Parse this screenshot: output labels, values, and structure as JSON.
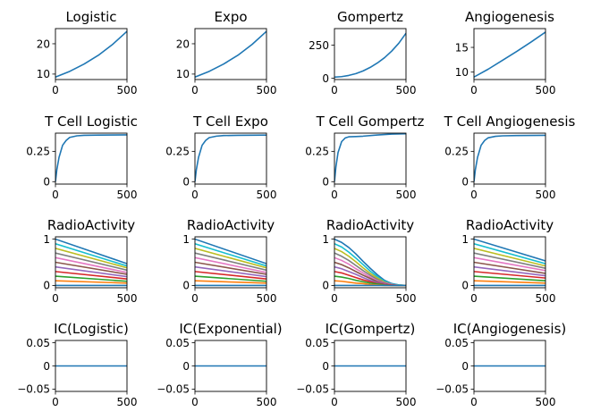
{
  "chart_data": [
    {
      "type": "line",
      "title": "Logistic",
      "xlim": [
        0,
        500
      ],
      "ylim": [
        8.2,
        25
      ],
      "xticks": [
        0,
        500
      ],
      "yticks": [
        10,
        20
      ],
      "series": [
        {
          "x": [
            0,
            100,
            200,
            300,
            400,
            500
          ],
          "y": [
            9.0,
            10.9,
            13.3,
            16.2,
            19.8,
            24.1
          ]
        }
      ]
    },
    {
      "type": "line",
      "title": "Expo",
      "xlim": [
        0,
        500
      ],
      "ylim": [
        8.2,
        25
      ],
      "xticks": [
        0,
        500
      ],
      "yticks": [
        10,
        20
      ],
      "series": [
        {
          "x": [
            0,
            100,
            200,
            300,
            400,
            500
          ],
          "y": [
            9.0,
            10.9,
            13.3,
            16.2,
            19.8,
            24.1
          ]
        }
      ]
    },
    {
      "type": "line",
      "title": "Gompertz",
      "xlim": [
        0,
        500
      ],
      "ylim": [
        -10,
        375
      ],
      "xticks": [
        0,
        500
      ],
      "yticks": [
        0,
        250
      ],
      "series": [
        {
          "x": [
            0,
            50,
            100,
            150,
            200,
            250,
            300,
            350,
            400,
            450,
            500
          ],
          "y": [
            8,
            12,
            21,
            35,
            55,
            82,
            115,
            155,
            205,
            265,
            340
          ]
        }
      ]
    },
    {
      "type": "line",
      "title": "Angiogenesis",
      "xlim": [
        0,
        500
      ],
      "ylim": [
        8.5,
        18.8
      ],
      "xticks": [
        0,
        500
      ],
      "yticks": [
        10,
        15
      ],
      "series": [
        {
          "x": [
            0,
            100,
            200,
            300,
            400,
            500
          ],
          "y": [
            9.0,
            10.6,
            12.4,
            14.2,
            16.1,
            18.1
          ]
        }
      ]
    },
    {
      "type": "line",
      "title": "T Cell Logistic",
      "xlim": [
        0,
        500
      ],
      "ylim": [
        -0.02,
        0.4
      ],
      "xticks": [
        0,
        500
      ],
      "yticks": [
        0.0,
        0.25
      ],
      "series": [
        {
          "x": [
            0,
            10,
            25,
            50,
            75,
            100,
            150,
            200,
            300,
            400,
            500
          ],
          "y": [
            0.0,
            0.1,
            0.2,
            0.3,
            0.34,
            0.365,
            0.378,
            0.382,
            0.384,
            0.385,
            0.386
          ]
        }
      ]
    },
    {
      "type": "line",
      "title": "T Cell Expo",
      "xlim": [
        0,
        500
      ],
      "ylim": [
        -0.02,
        0.4
      ],
      "xticks": [
        0,
        500
      ],
      "yticks": [
        0.0,
        0.25
      ],
      "series": [
        {
          "x": [
            0,
            10,
            25,
            50,
            75,
            100,
            150,
            200,
            300,
            400,
            500
          ],
          "y": [
            0.0,
            0.1,
            0.2,
            0.3,
            0.34,
            0.363,
            0.375,
            0.38,
            0.382,
            0.383,
            0.384
          ]
        }
      ]
    },
    {
      "type": "line",
      "title": "T Cell Gompertz",
      "xlim": [
        0,
        500
      ],
      "ylim": [
        -0.02,
        0.4
      ],
      "xticks": [
        0,
        500
      ],
      "yticks": [
        0.0,
        0.25
      ],
      "series": [
        {
          "x": [
            0,
            10,
            25,
            50,
            75,
            100,
            150,
            200,
            300,
            400,
            500
          ],
          "y": [
            0.0,
            0.12,
            0.24,
            0.33,
            0.36,
            0.37,
            0.372,
            0.375,
            0.385,
            0.392,
            0.395
          ]
        }
      ]
    },
    {
      "type": "line",
      "title": "T Cell Angiogenesis",
      "xlim": [
        0,
        500
      ],
      "ylim": [
        -0.02,
        0.4
      ],
      "xticks": [
        0,
        500
      ],
      "yticks": [
        0.0,
        0.25
      ],
      "series": [
        {
          "x": [
            0,
            10,
            25,
            50,
            75,
            100,
            150,
            200,
            300,
            400,
            500
          ],
          "y": [
            0.0,
            0.1,
            0.2,
            0.3,
            0.34,
            0.362,
            0.374,
            0.378,
            0.38,
            0.381,
            0.382
          ]
        }
      ]
    },
    {
      "type": "line",
      "title": "RadioActivity",
      "xlim": [
        0,
        500
      ],
      "ylim": [
        -0.05,
        1.05
      ],
      "xticks": [
        0,
        500
      ],
      "yticks": [
        0,
        1
      ],
      "series": [
        {
          "x": [
            0,
            500
          ],
          "y": [
            1.0,
            0.47
          ],
          "color": "#1f77b4"
        },
        {
          "x": [
            0,
            500
          ],
          "y": [
            0.9,
            0.42
          ],
          "color": "#17becf"
        },
        {
          "x": [
            0,
            500
          ],
          "y": [
            0.8,
            0.38
          ],
          "color": "#bcbd22"
        },
        {
          "x": [
            0,
            500
          ],
          "y": [
            0.7,
            0.33
          ],
          "color": "#7f7f7f"
        },
        {
          "x": [
            0,
            500
          ],
          "y": [
            0.6,
            0.28
          ],
          "color": "#e377c2"
        },
        {
          "x": [
            0,
            500
          ],
          "y": [
            0.5,
            0.24
          ],
          "color": "#8c564b"
        },
        {
          "x": [
            0,
            500
          ],
          "y": [
            0.4,
            0.19
          ],
          "color": "#9467bd"
        },
        {
          "x": [
            0,
            500
          ],
          "y": [
            0.3,
            0.14
          ],
          "color": "#d62728"
        },
        {
          "x": [
            0,
            500
          ],
          "y": [
            0.2,
            0.09
          ],
          "color": "#2ca02c"
        },
        {
          "x": [
            0,
            500
          ],
          "y": [
            0.1,
            0.05
          ],
          "color": "#ff7f0e"
        },
        {
          "x": [
            0,
            500
          ],
          "y": [
            0.0,
            0.0
          ],
          "color": "#1f77b4"
        }
      ]
    },
    {
      "type": "line",
      "title": "RadioActivity",
      "xlim": [
        0,
        500
      ],
      "ylim": [
        -0.05,
        1.05
      ],
      "xticks": [
        0,
        500
      ],
      "yticks": [
        0,
        1
      ],
      "series": [
        {
          "x": [
            0,
            500
          ],
          "y": [
            1.0,
            0.47
          ],
          "color": "#1f77b4"
        },
        {
          "x": [
            0,
            500
          ],
          "y": [
            0.9,
            0.42
          ],
          "color": "#17becf"
        },
        {
          "x": [
            0,
            500
          ],
          "y": [
            0.8,
            0.38
          ],
          "color": "#bcbd22"
        },
        {
          "x": [
            0,
            500
          ],
          "y": [
            0.7,
            0.33
          ],
          "color": "#7f7f7f"
        },
        {
          "x": [
            0,
            500
          ],
          "y": [
            0.6,
            0.28
          ],
          "color": "#e377c2"
        },
        {
          "x": [
            0,
            500
          ],
          "y": [
            0.5,
            0.24
          ],
          "color": "#8c564b"
        },
        {
          "x": [
            0,
            500
          ],
          "y": [
            0.4,
            0.19
          ],
          "color": "#9467bd"
        },
        {
          "x": [
            0,
            500
          ],
          "y": [
            0.3,
            0.14
          ],
          "color": "#d62728"
        },
        {
          "x": [
            0,
            500
          ],
          "y": [
            0.2,
            0.09
          ],
          "color": "#2ca02c"
        },
        {
          "x": [
            0,
            500
          ],
          "y": [
            0.1,
            0.05
          ],
          "color": "#ff7f0e"
        },
        {
          "x": [
            0,
            500
          ],
          "y": [
            0.0,
            0.0
          ],
          "color": "#1f77b4"
        }
      ]
    },
    {
      "type": "line",
      "title": "RadioActivity",
      "xlim": [
        0,
        500
      ],
      "ylim": [
        -0.05,
        1.05
      ],
      "xticks": [
        0,
        500
      ],
      "yticks": [
        0,
        1
      ],
      "series": [
        {
          "x": [
            0,
            50,
            100,
            150,
            200,
            250,
            300,
            350,
            400,
            450,
            500
          ],
          "y": [
            1.0,
            0.93,
            0.82,
            0.68,
            0.52,
            0.37,
            0.23,
            0.11,
            0.04,
            0.01,
            0.0
          ],
          "color": "#1f77b4"
        },
        {
          "x": [
            0,
            50,
            100,
            150,
            200,
            250,
            300,
            350,
            400,
            450,
            500
          ],
          "y": [
            0.9,
            0.83,
            0.72,
            0.59,
            0.45,
            0.31,
            0.19,
            0.09,
            0.03,
            0.01,
            0.0
          ],
          "color": "#17becf"
        },
        {
          "x": [
            0,
            50,
            100,
            150,
            200,
            250,
            300,
            350,
            400,
            450,
            500
          ],
          "y": [
            0.8,
            0.73,
            0.63,
            0.51,
            0.38,
            0.26,
            0.16,
            0.07,
            0.02,
            0.0,
            0.0
          ],
          "color": "#bcbd22"
        },
        {
          "x": [
            0,
            50,
            100,
            150,
            200,
            250,
            300,
            350,
            400,
            450,
            500
          ],
          "y": [
            0.7,
            0.63,
            0.54,
            0.43,
            0.32,
            0.22,
            0.13,
            0.06,
            0.02,
            0.0,
            0.0
          ],
          "color": "#7f7f7f"
        },
        {
          "x": [
            0,
            50,
            100,
            150,
            200,
            250,
            300,
            350,
            400,
            450,
            500
          ],
          "y": [
            0.6,
            0.54,
            0.46,
            0.36,
            0.27,
            0.18,
            0.1,
            0.05,
            0.02,
            0.0,
            0.0
          ],
          "color": "#e377c2"
        },
        {
          "x": [
            0,
            50,
            100,
            150,
            200,
            250,
            300,
            350,
            400,
            450,
            500
          ],
          "y": [
            0.5,
            0.45,
            0.38,
            0.3,
            0.22,
            0.15,
            0.08,
            0.04,
            0.01,
            0.0,
            0.0
          ],
          "color": "#8c564b"
        },
        {
          "x": [
            0,
            50,
            100,
            150,
            200,
            250,
            300,
            350,
            400,
            450,
            500
          ],
          "y": [
            0.4,
            0.36,
            0.3,
            0.24,
            0.17,
            0.11,
            0.06,
            0.03,
            0.01,
            0.0,
            0.0
          ],
          "color": "#9467bd"
        },
        {
          "x": [
            0,
            50,
            100,
            150,
            200,
            250,
            300,
            350,
            400,
            450,
            500
          ],
          "y": [
            0.3,
            0.27,
            0.22,
            0.17,
            0.12,
            0.08,
            0.04,
            0.02,
            0.01,
            0.0,
            0.0
          ],
          "color": "#d62728"
        },
        {
          "x": [
            0,
            50,
            100,
            150,
            200,
            250,
            300,
            350,
            400,
            450,
            500
          ],
          "y": [
            0.2,
            0.18,
            0.15,
            0.11,
            0.08,
            0.05,
            0.03,
            0.01,
            0.0,
            0.0,
            0.0
          ],
          "color": "#2ca02c"
        },
        {
          "x": [
            0,
            50,
            100,
            150,
            200,
            250,
            300,
            350,
            400,
            450,
            500
          ],
          "y": [
            0.1,
            0.09,
            0.07,
            0.05,
            0.04,
            0.02,
            0.01,
            0.0,
            0.0,
            0.0,
            0.0
          ],
          "color": "#ff7f0e"
        },
        {
          "x": [
            0,
            500
          ],
          "y": [
            0.0,
            0.0
          ],
          "color": "#1f77b4"
        }
      ]
    },
    {
      "type": "line",
      "title": "RadioActivity",
      "xlim": [
        0,
        500
      ],
      "ylim": [
        -0.05,
        1.05
      ],
      "xticks": [
        0,
        500
      ],
      "yticks": [
        0,
        1
      ],
      "series": [
        {
          "x": [
            0,
            500
          ],
          "y": [
            1.0,
            0.53
          ],
          "color": "#1f77b4"
        },
        {
          "x": [
            0,
            500
          ],
          "y": [
            0.9,
            0.47
          ],
          "color": "#17becf"
        },
        {
          "x": [
            0,
            500
          ],
          "y": [
            0.8,
            0.42
          ],
          "color": "#bcbd22"
        },
        {
          "x": [
            0,
            500
          ],
          "y": [
            0.7,
            0.37
          ],
          "color": "#7f7f7f"
        },
        {
          "x": [
            0,
            500
          ],
          "y": [
            0.6,
            0.32
          ],
          "color": "#e377c2"
        },
        {
          "x": [
            0,
            500
          ],
          "y": [
            0.5,
            0.26
          ],
          "color": "#8c564b"
        },
        {
          "x": [
            0,
            500
          ],
          "y": [
            0.4,
            0.21
          ],
          "color": "#9467bd"
        },
        {
          "x": [
            0,
            500
          ],
          "y": [
            0.3,
            0.16
          ],
          "color": "#d62728"
        },
        {
          "x": [
            0,
            500
          ],
          "y": [
            0.2,
            0.1
          ],
          "color": "#2ca02c"
        },
        {
          "x": [
            0,
            500
          ],
          "y": [
            0.1,
            0.05
          ],
          "color": "#ff7f0e"
        },
        {
          "x": [
            0,
            500
          ],
          "y": [
            0.0,
            0.0
          ],
          "color": "#1f77b4"
        }
      ]
    },
    {
      "type": "line",
      "title": "IC(Logistic)",
      "xlim": [
        0,
        500
      ],
      "ylim": [
        -0.055,
        0.055
      ],
      "xticks": [
        0,
        500
      ],
      "yticks": [
        -0.05,
        0.0,
        0.05
      ],
      "series": [
        {
          "x": [
            0,
            500
          ],
          "y": [
            0.0,
            0.0
          ]
        }
      ]
    },
    {
      "type": "line",
      "title": "IC(Exponential)",
      "xlim": [
        0,
        500
      ],
      "ylim": [
        -0.055,
        0.055
      ],
      "xticks": [
        0,
        500
      ],
      "yticks": [
        -0.05,
        0.0,
        0.05
      ],
      "series": [
        {
          "x": [
            0,
            500
          ],
          "y": [
            0.0,
            0.0
          ]
        }
      ]
    },
    {
      "type": "line",
      "title": "IC(Gompertz)",
      "xlim": [
        0,
        500
      ],
      "ylim": [
        -0.055,
        0.055
      ],
      "xticks": [
        0,
        500
      ],
      "yticks": [
        -0.05,
        0.0,
        0.05
      ],
      "series": [
        {
          "x": [
            0,
            500
          ],
          "y": [
            0.0,
            0.0
          ]
        }
      ]
    },
    {
      "type": "line",
      "title": "IC(Angiogenesis)",
      "xlim": [
        0,
        500
      ],
      "ylim": [
        -0.055,
        0.055
      ],
      "xticks": [
        0,
        500
      ],
      "yticks": [
        -0.05,
        0.0,
        0.05
      ],
      "series": [
        {
          "x": [
            0,
            500
          ],
          "y": [
            0.0,
            0.0
          ]
        }
      ]
    }
  ],
  "colors": {
    "default_line": "#1f77b4",
    "axes": "#000000",
    "background": "#ffffff"
  }
}
